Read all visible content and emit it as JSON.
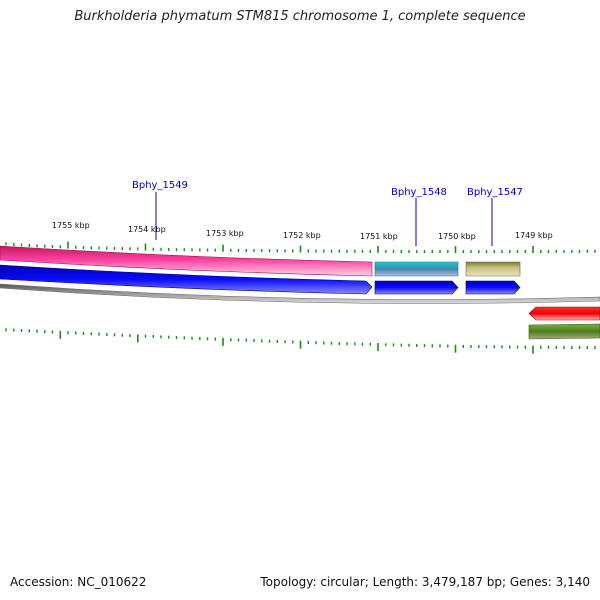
{
  "title": "Burkholderia phymatum STM815 chromosome 1, complete sequence",
  "footer": {
    "accession": "Accession: NC_010622",
    "topology": "Topology: circular; Length: 3,479,187 bp; Genes: 3,140"
  },
  "scale_labels": [
    "1755 kbp",
    "1754 kbp",
    "1753 kbp",
    "1752 kbp",
    "1751 kbp",
    "1750 kbp",
    "1749 kbp"
  ],
  "gene_labels": [
    "Bphy_1549",
    "Bphy_1548",
    "Bphy_1547"
  ],
  "colors": {
    "label": "#0000cc",
    "tick": "#1a8a1a",
    "pink": "#ff3399",
    "blue": "#0000ee",
    "cyan": "#22bbcc",
    "khaki": "#bdb76b",
    "red": "#ee0000",
    "olive": "#558b2f",
    "backbone": "#777777"
  }
}
